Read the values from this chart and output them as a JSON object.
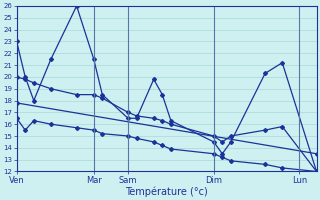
{
  "xlabel": "Température (°c)",
  "ylim": [
    12,
    26
  ],
  "yticks": [
    12,
    13,
    14,
    15,
    16,
    17,
    18,
    19,
    20,
    21,
    22,
    23,
    24,
    25,
    26
  ],
  "xlim": [
    0,
    35
  ],
  "day_labels": [
    "Ven",
    "Mar",
    "Sam",
    "Dim",
    "Lun"
  ],
  "day_positions": [
    0,
    9,
    13,
    23,
    33
  ],
  "background_color": "#cff0f0",
  "grid_color": "#a8d8d8",
  "line_color": "#1a3399",
  "line1_x": [
    0,
    1,
    2,
    4,
    7,
    9,
    10,
    13,
    14,
    16,
    17,
    18,
    23,
    24,
    25,
    29,
    31,
    35
  ],
  "line1_y": [
    23,
    20,
    18,
    21.5,
    26,
    21.5,
    18.5,
    16.5,
    16.5,
    19.8,
    18.5,
    16.3,
    14.5,
    13.5,
    14.5,
    20.3,
    21.2,
    12
  ],
  "line2_x": [
    0,
    1,
    2,
    4,
    7,
    9,
    10,
    13,
    14,
    16,
    17,
    18,
    23,
    24,
    25,
    29,
    31,
    35
  ],
  "line2_y": [
    20.0,
    19.8,
    19.5,
    19.0,
    18.5,
    18.5,
    18.2,
    17.0,
    16.7,
    16.5,
    16.3,
    16.0,
    15.0,
    14.5,
    15.0,
    15.5,
    15.8,
    12.0
  ],
  "line3_x": [
    0,
    35
  ],
  "line3_y": [
    17.8,
    13.5
  ],
  "line4_x": [
    0,
    1,
    2,
    4,
    7,
    9,
    10,
    13,
    14,
    16,
    17,
    18,
    23,
    24,
    25,
    29,
    31,
    35
  ],
  "line4_y": [
    16.5,
    15.5,
    16.3,
    16.0,
    15.7,
    15.5,
    15.2,
    15.0,
    14.8,
    14.5,
    14.2,
    13.9,
    13.5,
    13.2,
    12.9,
    12.6,
    12.3,
    12.0
  ]
}
